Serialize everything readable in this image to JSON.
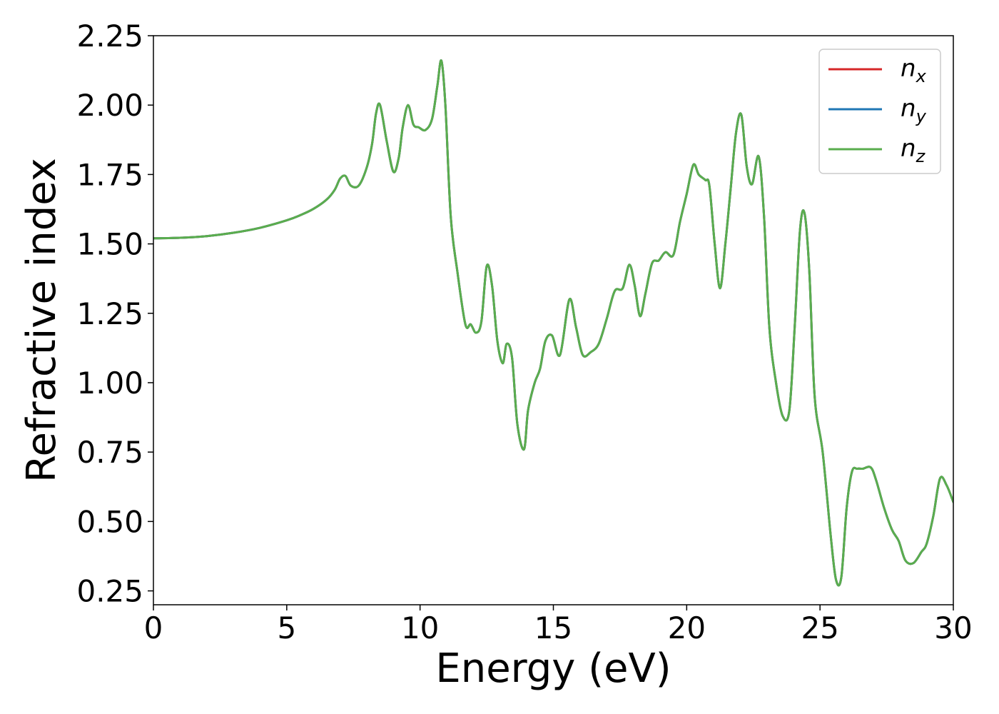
{
  "chart_data": {
    "type": "line",
    "title": "",
    "xlabel": "Energy (eV)",
    "ylabel": "Refractive index",
    "xlim": [
      0,
      30
    ],
    "ylim": [
      0.2,
      2.25
    ],
    "xticks": [
      0,
      5,
      10,
      15,
      20,
      25,
      30
    ],
    "xtick_labels": [
      "0",
      "5",
      "10",
      "15",
      "20",
      "25",
      "30"
    ],
    "yticks": [
      0.25,
      0.5,
      0.75,
      1.0,
      1.25,
      1.5,
      1.75,
      2.0,
      2.25
    ],
    "ytick_labels": [
      "0.25",
      "0.50",
      "0.75",
      "1.00",
      "1.25",
      "1.50",
      "1.75",
      "2.00",
      "2.25"
    ],
    "grid": false,
    "legend_position": "top-right",
    "colors": {
      "nx": "#d62728",
      "ny": "#1f77b4",
      "nz": "#5aad4e"
    },
    "legend": [
      {
        "key": "nx",
        "base": "n",
        "sub": "x"
      },
      {
        "key": "ny",
        "base": "n",
        "sub": "y"
      },
      {
        "key": "nz",
        "base": "n",
        "sub": "z"
      }
    ],
    "x": [
      0,
      1,
      2,
      3,
      4,
      5,
      5.5,
      6,
      6.5,
      6.8,
      7.0,
      7.2,
      7.4,
      7.7,
      8.0,
      8.2,
      8.35,
      8.5,
      8.75,
      9.0,
      9.2,
      9.35,
      9.55,
      9.75,
      9.95,
      10.2,
      10.45,
      10.65,
      10.8,
      10.95,
      11.15,
      11.4,
      11.7,
      11.9,
      12.1,
      12.3,
      12.5,
      12.7,
      12.9,
      13.1,
      13.25,
      13.45,
      13.65,
      13.9,
      14.05,
      14.3,
      14.5,
      14.7,
      14.95,
      15.25,
      15.6,
      15.85,
      16.1,
      16.4,
      16.7,
      17.0,
      17.3,
      17.6,
      17.85,
      18.05,
      18.25,
      18.45,
      18.7,
      18.95,
      19.2,
      19.5,
      19.75,
      20.0,
      20.25,
      20.45,
      20.7,
      20.85,
      21.05,
      21.25,
      21.45,
      21.65,
      21.85,
      22.05,
      22.25,
      22.45,
      22.7,
      22.9,
      23.1,
      23.35,
      23.6,
      23.85,
      24.05,
      24.25,
      24.42,
      24.6,
      24.8,
      25.1,
      25.4,
      25.6,
      25.8,
      26.0,
      26.2,
      26.4,
      26.6,
      26.9,
      27.1,
      27.4,
      27.7,
      27.95,
      28.2,
      28.5,
      28.8,
      29.0,
      29.25,
      29.5,
      29.75,
      30.0
    ],
    "series": [
      {
        "name": "nx",
        "values": [
          1.52,
          1.522,
          1.528,
          1.54,
          1.558,
          1.585,
          1.603,
          1.626,
          1.66,
          1.695,
          1.735,
          1.745,
          1.71,
          1.71,
          1.775,
          1.86,
          1.97,
          2.0,
          1.87,
          1.76,
          1.81,
          1.92,
          2.0,
          1.93,
          1.92,
          1.91,
          1.95,
          2.07,
          2.16,
          2.0,
          1.6,
          1.4,
          1.21,
          1.21,
          1.18,
          1.22,
          1.42,
          1.35,
          1.15,
          1.07,
          1.14,
          1.09,
          0.85,
          0.76,
          0.9,
          1.0,
          1.05,
          1.15,
          1.17,
          1.1,
          1.3,
          1.2,
          1.1,
          1.11,
          1.14,
          1.23,
          1.33,
          1.34,
          1.425,
          1.35,
          1.24,
          1.32,
          1.43,
          1.44,
          1.47,
          1.46,
          1.58,
          1.68,
          1.785,
          1.75,
          1.73,
          1.71,
          1.5,
          1.34,
          1.5,
          1.7,
          1.9,
          1.965,
          1.78,
          1.715,
          1.815,
          1.6,
          1.2,
          1.0,
          0.88,
          0.9,
          1.2,
          1.55,
          1.61,
          1.4,
          0.95,
          0.75,
          0.45,
          0.29,
          0.3,
          0.55,
          0.68,
          0.69,
          0.69,
          0.695,
          0.65,
          0.55,
          0.47,
          0.43,
          0.36,
          0.35,
          0.39,
          0.42,
          0.52,
          0.655,
          0.63,
          0.57
        ]
      },
      {
        "name": "ny",
        "values": [
          1.52,
          1.522,
          1.528,
          1.54,
          1.558,
          1.585,
          1.603,
          1.626,
          1.66,
          1.695,
          1.735,
          1.745,
          1.71,
          1.71,
          1.775,
          1.86,
          1.97,
          2.0,
          1.87,
          1.76,
          1.81,
          1.92,
          2.0,
          1.93,
          1.92,
          1.91,
          1.95,
          2.07,
          2.16,
          2.0,
          1.6,
          1.4,
          1.21,
          1.21,
          1.18,
          1.22,
          1.42,
          1.35,
          1.15,
          1.07,
          1.14,
          1.09,
          0.85,
          0.76,
          0.9,
          1.0,
          1.05,
          1.15,
          1.17,
          1.1,
          1.3,
          1.2,
          1.1,
          1.11,
          1.14,
          1.23,
          1.33,
          1.34,
          1.425,
          1.35,
          1.24,
          1.32,
          1.43,
          1.44,
          1.47,
          1.46,
          1.58,
          1.68,
          1.785,
          1.75,
          1.73,
          1.71,
          1.5,
          1.34,
          1.5,
          1.7,
          1.9,
          1.965,
          1.78,
          1.715,
          1.815,
          1.6,
          1.2,
          1.0,
          0.88,
          0.9,
          1.2,
          1.55,
          1.61,
          1.4,
          0.95,
          0.75,
          0.45,
          0.29,
          0.3,
          0.55,
          0.68,
          0.69,
          0.69,
          0.695,
          0.65,
          0.55,
          0.47,
          0.43,
          0.36,
          0.35,
          0.39,
          0.42,
          0.52,
          0.655,
          0.63,
          0.57
        ]
      },
      {
        "name": "nz",
        "values": [
          1.52,
          1.522,
          1.528,
          1.54,
          1.558,
          1.585,
          1.603,
          1.626,
          1.66,
          1.695,
          1.735,
          1.745,
          1.71,
          1.71,
          1.775,
          1.86,
          1.97,
          2.0,
          1.87,
          1.76,
          1.81,
          1.92,
          2.0,
          1.93,
          1.92,
          1.91,
          1.95,
          2.07,
          2.16,
          2.0,
          1.6,
          1.4,
          1.21,
          1.21,
          1.18,
          1.22,
          1.42,
          1.35,
          1.15,
          1.07,
          1.14,
          1.09,
          0.85,
          0.76,
          0.9,
          1.0,
          1.05,
          1.15,
          1.17,
          1.1,
          1.3,
          1.2,
          1.1,
          1.11,
          1.14,
          1.23,
          1.33,
          1.34,
          1.425,
          1.35,
          1.24,
          1.32,
          1.43,
          1.44,
          1.47,
          1.46,
          1.58,
          1.68,
          1.785,
          1.75,
          1.73,
          1.71,
          1.5,
          1.34,
          1.5,
          1.7,
          1.9,
          1.965,
          1.78,
          1.715,
          1.815,
          1.6,
          1.2,
          1.0,
          0.88,
          0.9,
          1.2,
          1.55,
          1.61,
          1.4,
          0.95,
          0.75,
          0.45,
          0.29,
          0.3,
          0.55,
          0.68,
          0.69,
          0.69,
          0.695,
          0.65,
          0.55,
          0.47,
          0.43,
          0.36,
          0.35,
          0.39,
          0.42,
          0.52,
          0.655,
          0.63,
          0.57
        ]
      }
    ]
  }
}
